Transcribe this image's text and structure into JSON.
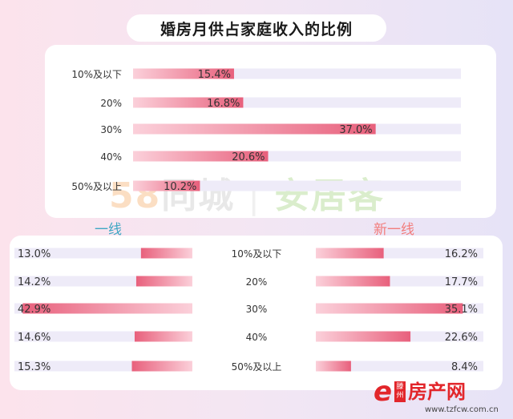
{
  "title": "婚房月供占家庭收入的比例",
  "colors": {
    "bar_fill": "#f59cb0",
    "bar_fill_end": "#e8607c",
    "track": "#eeebf8",
    "tier1": "#3fa7c4",
    "new_tier1": "#f27c7c"
  },
  "watermark": {
    "part1": "58",
    "part2": "同城",
    "part3": "安居客"
  },
  "logo": {
    "brand": "滕州",
    "name": "房产网",
    "url": "www.tzfcw.com.cn"
  },
  "chart_data": [
    {
      "type": "bar",
      "categories": [
        "10%及以下",
        "20%",
        "30%",
        "40%",
        "50%及以上"
      ],
      "values": [
        15.4,
        16.8,
        37.0,
        20.6,
        10.2
      ],
      "value_labels": [
        "15.4%",
        "16.8%",
        "37.0%",
        "20.6%",
        "10.2%"
      ],
      "xlim": [
        0,
        50
      ],
      "orientation": "horizontal"
    },
    {
      "type": "bar",
      "subtitle": "一线",
      "categories": [
        "10%及以下",
        "20%",
        "30%",
        "40%",
        "50%及以上"
      ],
      "values": [
        13.0,
        14.2,
        42.9,
        14.6,
        15.3
      ],
      "value_labels": [
        "13.0%",
        "14.2%",
        "42.9%",
        "14.6%",
        "15.3%"
      ],
      "xlim": [
        0,
        45
      ],
      "orientation": "horizontal",
      "direction": "right-to-left"
    },
    {
      "type": "bar",
      "subtitle": "新一线",
      "categories": [
        "10%及以下",
        "20%",
        "30%",
        "40%",
        "50%及以上"
      ],
      "values": [
        16.2,
        17.7,
        35.1,
        22.6,
        8.4
      ],
      "value_labels": [
        "16.2%",
        "17.7%",
        "35.1%",
        "22.6%",
        "8.4%"
      ],
      "xlim": [
        0,
        40
      ],
      "orientation": "horizontal"
    }
  ]
}
